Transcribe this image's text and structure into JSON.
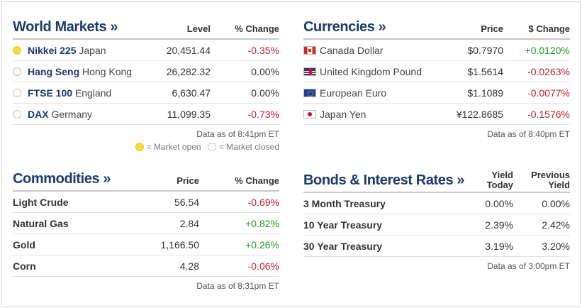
{
  "world_markets": {
    "title": "World Markets »",
    "col_level": "Level",
    "col_change": "% Change",
    "rows": [
      {
        "index": "Nikkei 225",
        "country": "Japan",
        "level": "20,451.44",
        "change": "-0.35%",
        "dir": "neg",
        "status": "open"
      },
      {
        "index": "Hang Seng",
        "country": "Hong Kong",
        "level": "26,282.32",
        "change": "0.00%",
        "dir": "zero",
        "status": "closed"
      },
      {
        "index": "FTSE 100",
        "country": "England",
        "level": "6,630.47",
        "change": "0.00%",
        "dir": "zero",
        "status": "closed"
      },
      {
        "index": "DAX",
        "country": "Germany",
        "level": "11,099.35",
        "change": "-0.73%",
        "dir": "neg",
        "status": "closed"
      }
    ],
    "as_of": "Data as of 8:41pm ET",
    "legend_open": "= Market open",
    "legend_closed": "= Market closed"
  },
  "currencies": {
    "title": "Currencies »",
    "col_price": "Price",
    "col_change": "$ Change",
    "rows": [
      {
        "flag": "canada-flag-icon",
        "name": "Canada Dollar",
        "price": "$0.7970",
        "change": "+0.0120%",
        "dir": "pos"
      },
      {
        "flag": "uk-flag-icon",
        "name": "United Kingdom Pound",
        "price": "$1.5614",
        "change": "-0.0263%",
        "dir": "neg"
      },
      {
        "flag": "eu-flag-icon",
        "name": "European Euro",
        "price": "$1.1089",
        "change": "-0.0077%",
        "dir": "neg"
      },
      {
        "flag": "japan-flag-icon",
        "name": "Japan Yen",
        "price": "¥122.8685",
        "change": "-0.1576%",
        "dir": "neg"
      }
    ],
    "as_of": "Data as of 8:40pm ET"
  },
  "commodities": {
    "title": "Commodities »",
    "col_price": "Price",
    "col_change": "% Change",
    "rows": [
      {
        "name": "Light Crude",
        "price": "56.54",
        "change": "-0.69%",
        "dir": "neg"
      },
      {
        "name": "Natural Gas",
        "price": "2.84",
        "change": "+0.82%",
        "dir": "pos"
      },
      {
        "name": "Gold",
        "price": "1,166.50",
        "change": "+0.26%",
        "dir": "pos"
      },
      {
        "name": "Corn",
        "price": "4.28",
        "change": "-0.06%",
        "dir": "neg"
      }
    ],
    "as_of": "Data as of 8:31pm ET"
  },
  "bonds": {
    "title": "Bonds & Interest Rates »",
    "col_yield_1": "Yield",
    "col_yield_2": "Today",
    "col_prev_1": "Previous",
    "col_prev_2": "Yield",
    "rows": [
      {
        "name": "3 Month Treasury",
        "yield": "0.00%",
        "previous": "0.00%"
      },
      {
        "name": "10 Year Treasury",
        "yield": "2.39%",
        "previous": "2.42%"
      },
      {
        "name": "30 Year Treasury",
        "yield": "3.19%",
        "previous": "3.20%"
      }
    ],
    "as_of": "Data as of 3:00pm ET"
  },
  "colors": {
    "title": "#1c3a6b",
    "positive": "#229a2a",
    "negative": "#c0222a",
    "market_open": "#f3dd3a"
  }
}
